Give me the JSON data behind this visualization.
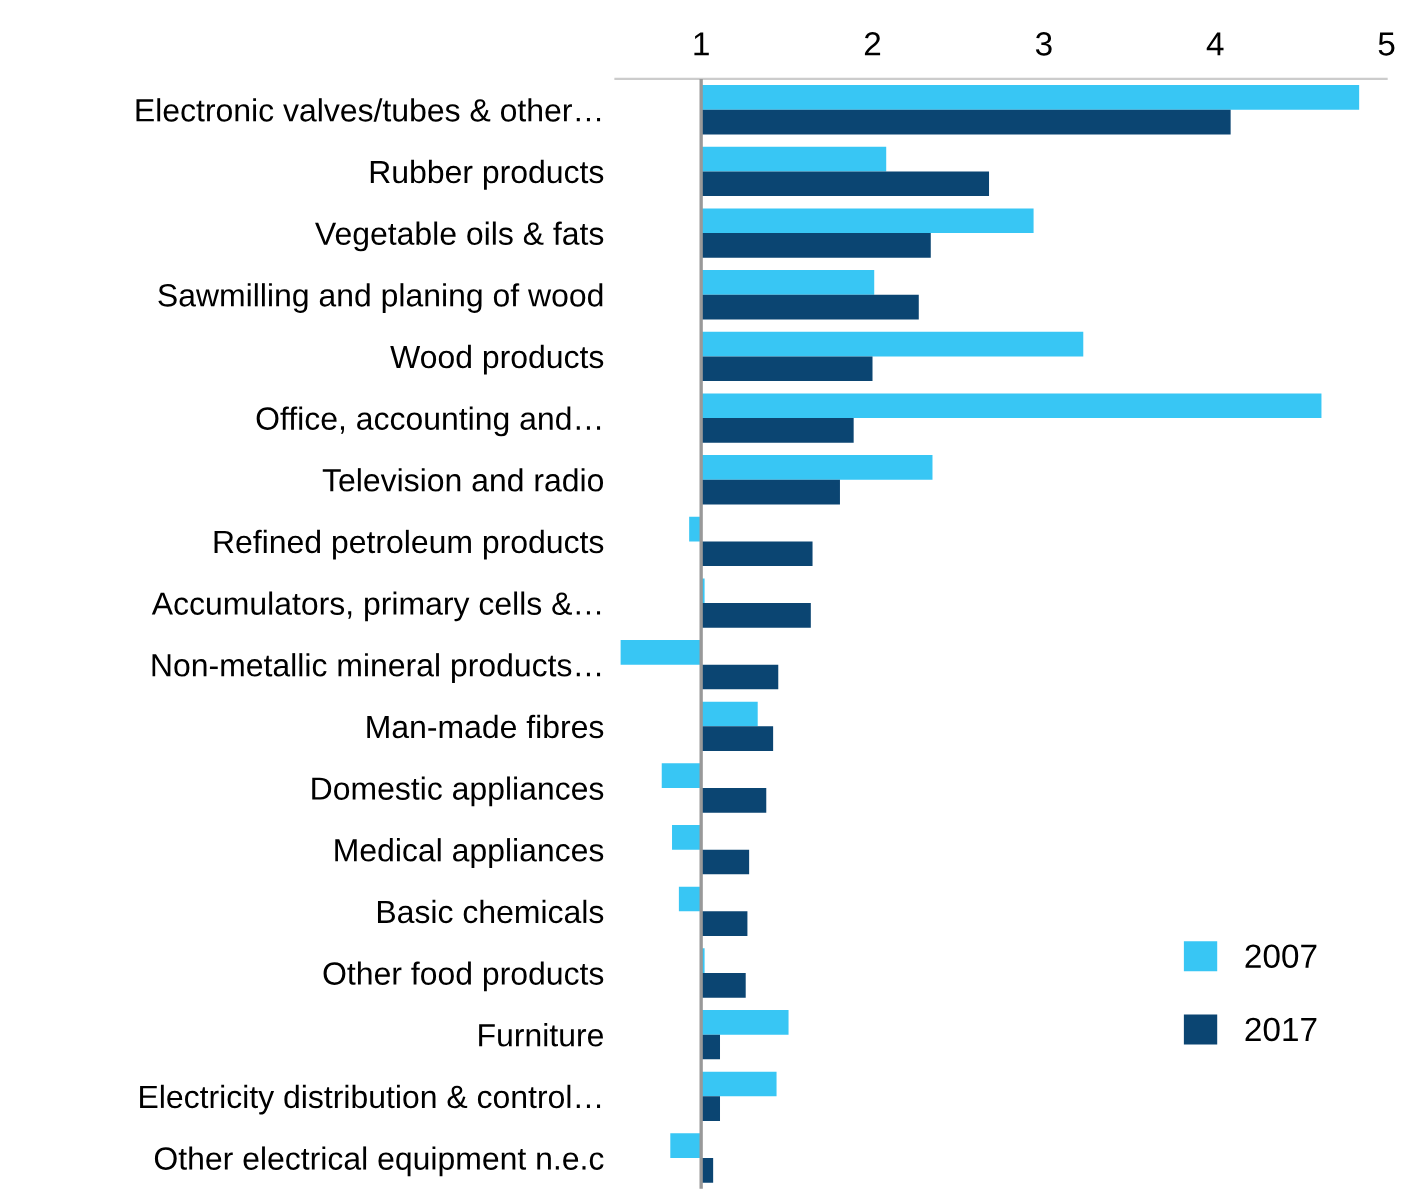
{
  "chart_data": {
    "type": "bar",
    "orientation": "horizontal",
    "categories": [
      "Electronic valves/tubes & other…",
      "Rubber products",
      "Vegetable oils & fats",
      "Sawmilling and planing of wood",
      "Wood products",
      "Office, accounting and…",
      "Television and radio",
      "Refined petroleum products",
      "Accumulators, primary cells &…",
      "Non-metallic mineral products…",
      "Man-made fibres",
      "Domestic appliances",
      "Medical appliances",
      "Basic chemicals",
      "Other food products",
      "Furniture",
      "Electricity distribution & control…",
      "Other electrical equipment n.e.c"
    ],
    "series": [
      {
        "name": "2007",
        "color": "#38c6f4",
        "base": [
          1,
          1,
          1,
          1,
          1,
          1,
          1,
          1,
          1,
          1,
          1,
          1,
          1,
          1,
          1,
          1,
          1,
          1
        ],
        "values": [
          3.84,
          1.08,
          1.94,
          1.01,
          2.23,
          3.62,
          1.35,
          -0.07,
          0.02,
          -0.47,
          0.33,
          -0.23,
          -0.17,
          -0.13,
          0.02,
          0.51,
          0.44,
          -0.18
        ]
      },
      {
        "name": "2017",
        "color": "#0b4572",
        "base": [
          1,
          1,
          1,
          1,
          1,
          1,
          1,
          1,
          1,
          1,
          1,
          1,
          1,
          1,
          1,
          1,
          1,
          1
        ],
        "values": [
          3.09,
          1.68,
          1.34,
          1.27,
          1.0,
          0.89,
          0.81,
          0.65,
          0.64,
          0.45,
          0.42,
          0.38,
          0.28,
          0.27,
          0.26,
          0.11,
          0.11,
          0.07
        ]
      }
    ],
    "xlim": [
      0.5,
      5
    ],
    "xticks": [
      1,
      2,
      3,
      4,
      5
    ],
    "ref_lines": [
      {
        "axis": "x",
        "value": 1,
        "color": "#999999"
      }
    ],
    "grid": false,
    "legend": "bottom right"
  }
}
